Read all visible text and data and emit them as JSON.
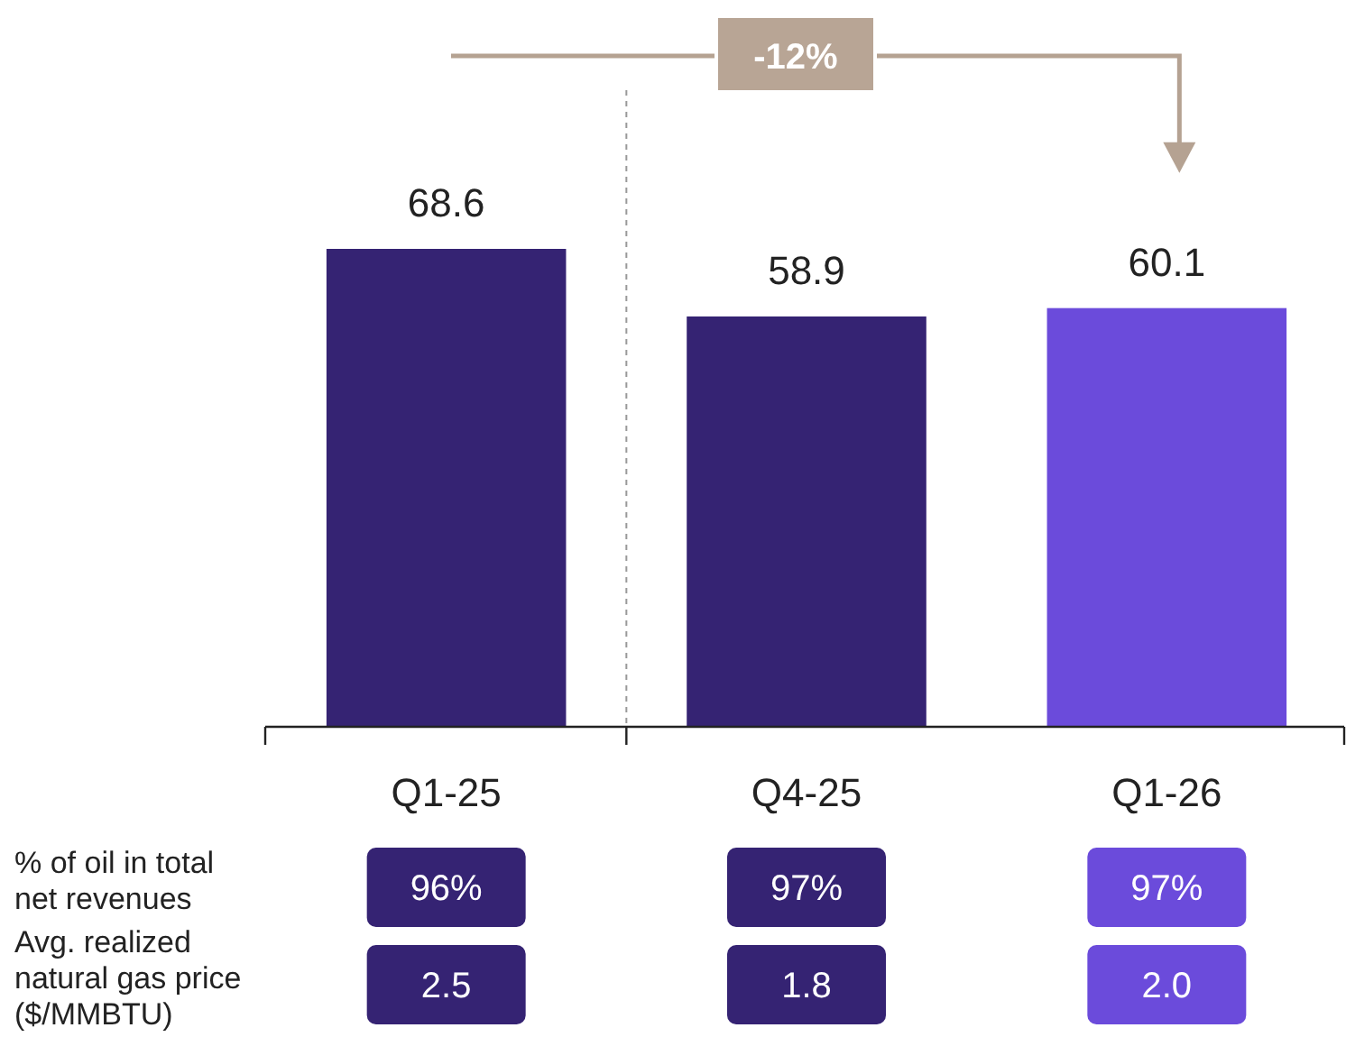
{
  "chart_data": {
    "type": "bar",
    "categories": [
      "Q1-25",
      "Q4-25",
      "Q1-26"
    ],
    "values": [
      68.6,
      58.9,
      60.1
    ],
    "colors": [
      "#352373",
      "#352373",
      "#6b4bdb"
    ],
    "data_labels": true,
    "annotations": [
      "-12%",
      "% of oil in total net revenues",
      "96%",
      "97%",
      "97%",
      "Avg. realized natural gas price ($/MMBTU)",
      "2.5",
      "1.8",
      "2.0"
    ]
  }
}
